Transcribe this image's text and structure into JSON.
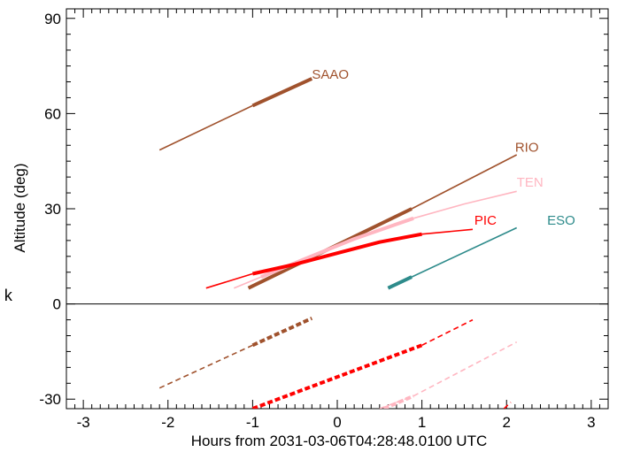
{
  "chart_data": {
    "type": "line",
    "title": "",
    "xlabel": "Hours from 2031-03-06T04:28:48.0100 UTC",
    "ylabel": "Altitude (deg)",
    "xlim": [
      -3.2,
      3.2
    ],
    "ylim": [
      -33,
      93
    ],
    "x_ticks": [
      -3,
      -2,
      -1,
      0,
      1,
      2,
      3
    ],
    "y_ticks": [
      -30,
      0,
      30,
      60,
      90
    ],
    "x_tick_labels": [
      "-3",
      "-2",
      "-1",
      "0",
      "1",
      "2",
      "3"
    ],
    "y_tick_labels": [
      "-30",
      "0",
      "30",
      "60",
      "90"
    ],
    "horizon_line": 0,
    "side_mark": "k",
    "series": [
      {
        "name": "SAAO",
        "color": "#a0522d",
        "label_at": [
          -0.3,
          71
        ],
        "segments": [
          {
            "style": "thin",
            "points": [
              [
                -2.1,
                48.5
              ],
              [
                -1.0,
                62.5
              ]
            ]
          },
          {
            "style": "thick",
            "points": [
              [
                -1.0,
                62.5
              ],
              [
                -0.3,
                71.0
              ]
            ]
          },
          {
            "style": "dashed",
            "points": [
              [
                -2.1,
                -26.5
              ],
              [
                -1.0,
                -13.0
              ]
            ]
          },
          {
            "style": "thick-dashed",
            "points": [
              [
                -1.0,
                -13.0
              ],
              [
                -0.3,
                -4.5
              ]
            ]
          }
        ]
      },
      {
        "name": "RIO",
        "color": "#a0522d",
        "label_at": [
          2.1,
          48
        ],
        "segments": [
          {
            "style": "thick",
            "points": [
              [
                -1.05,
                5.0
              ],
              [
                0.88,
                30.0
              ]
            ]
          },
          {
            "style": "thin",
            "points": [
              [
                0.88,
                30.0
              ],
              [
                2.12,
                47.0
              ]
            ]
          }
        ]
      },
      {
        "name": "TEN",
        "color": "#ffb6c1",
        "label_at": [
          2.12,
          37
        ],
        "segments": [
          {
            "style": "thin",
            "points": [
              [
                -1.22,
                5.0
              ],
              [
                -0.9,
                8.5
              ]
            ]
          },
          {
            "style": "thick",
            "points": [
              [
                -0.9,
                8.5
              ],
              [
                -0.4,
                14.0
              ],
              [
                0.2,
                20.5
              ],
              [
                0.9,
                27.0
              ]
            ]
          },
          {
            "style": "thin",
            "points": [
              [
                0.9,
                27.0
              ],
              [
                1.5,
                31.5
              ],
              [
                2.12,
                35.5
              ]
            ]
          },
          {
            "style": "dashed",
            "points": [
              [
                0.5,
                -33.0
              ],
              [
                0.9,
                -29.0
              ]
            ]
          },
          {
            "style": "thick-dashed",
            "points": [
              [
                0.55,
                -33.0
              ],
              [
                0.9,
                -29.0
              ]
            ]
          },
          {
            "style": "dashed",
            "points": [
              [
                0.9,
                -29.0
              ],
              [
                2.12,
                -12.0
              ]
            ]
          }
        ]
      },
      {
        "name": "PIC",
        "color": "#ff0000",
        "label_at": [
          1.62,
          25
        ],
        "segments": [
          {
            "style": "thin",
            "points": [
              [
                -1.55,
                5.0
              ],
              [
                -1.0,
                9.5
              ]
            ]
          },
          {
            "style": "thick",
            "points": [
              [
                -1.0,
                9.5
              ],
              [
                -0.5,
                12.5
              ],
              [
                0.0,
                16.0
              ],
              [
                0.5,
                19.5
              ],
              [
                1.0,
                22.0
              ]
            ]
          },
          {
            "style": "thin",
            "points": [
              [
                1.0,
                22.0
              ],
              [
                1.6,
                23.5
              ]
            ]
          },
          {
            "style": "thick-dashed",
            "points": [
              [
                -1.0,
                -33.0
              ],
              [
                1.0,
                -13.0
              ]
            ]
          },
          {
            "style": "dashed",
            "points": [
              [
                1.0,
                -13.0
              ],
              [
                1.6,
                -5.0
              ]
            ]
          },
          {
            "style": "dashed",
            "points": [
              [
                1.97,
                -33.0
              ],
              [
                2.05,
                -31.0
              ]
            ]
          }
        ]
      },
      {
        "name": "ESO",
        "color": "#2e8b8b",
        "label_at": [
          2.48,
          25
        ],
        "segments": [
          {
            "style": "thick",
            "points": [
              [
                0.6,
                5.0
              ],
              [
                0.88,
                8.5
              ]
            ]
          },
          {
            "style": "thin",
            "points": [
              [
                0.88,
                8.5
              ],
              [
                2.12,
                24.0
              ]
            ]
          }
        ]
      }
    ]
  }
}
